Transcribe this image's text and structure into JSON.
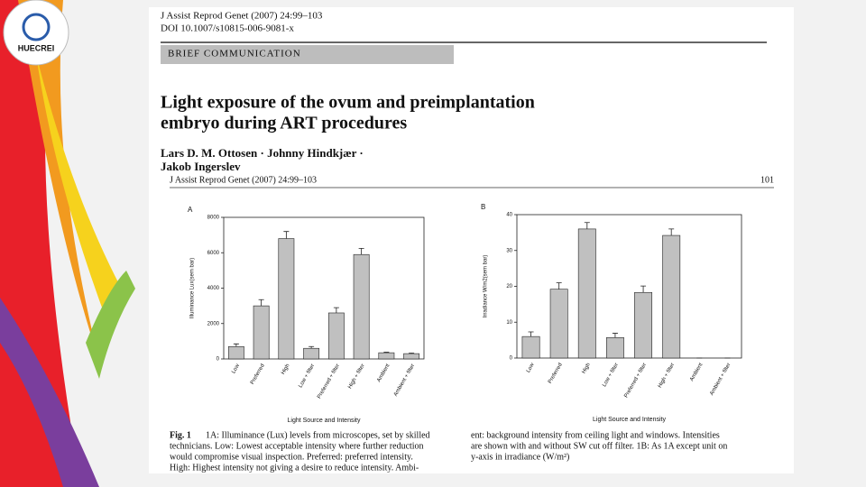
{
  "logo": "HUECREI",
  "paper": {
    "journal": "J Assist Reprod Genet (2007) 24:99–103",
    "doi": "DOI 10.1007/s10815-006-9081-x",
    "section": "BRIEF COMMUNICATION",
    "title_lines": [
      "Light exposure of the ovum and preimplantation",
      "embryo during ART procedures"
    ],
    "author_lines": [
      "Lars D. M. Ottosen · Johnny Hindkjær ·",
      "Jakob Ingerslev"
    ],
    "running_header": "J Assist Reprod Genet (2007) 24:99–103",
    "page_number": "101",
    "caption": {
      "label": "Fig. 1",
      "left_lines": [
        "1A: Illuminance (Lux) levels from microscopes, set by skilled",
        "technicians. Low: Lowest acceptable intensity where further reduction",
        "would compromise visual inspection. Preferred: preferred intensity.",
        "High: Highest intensity not giving a desire to reduce intensity. Ambi-"
      ],
      "right_lines": [
        "ent: background intensity from ceiling light and windows. Intensities",
        "are shown with and without SW cut off filter. 1B: As 1A except unit on",
        "y-axis in irradiance (W/m²)"
      ]
    }
  },
  "chart_data": [
    {
      "type": "bar",
      "panel": "A",
      "y_label": "Illuminance Lux(sem bar)",
      "x_label": "Light Source and Intensity",
      "categories": [
        "Low",
        "Preferred",
        "High",
        "Low + filter",
        "Preferred + filter",
        "High + filter",
        "Ambient",
        "Ambient + filter"
      ],
      "values": [
        700,
        3000,
        6800,
        600,
        2600,
        5900,
        350,
        300
      ],
      "errors": [
        150,
        350,
        400,
        100,
        300,
        350,
        30,
        30
      ],
      "ylim": [
        0,
        8000
      ],
      "yticks": [
        0,
        2000,
        4000,
        6000,
        8000
      ],
      "color": "#c0c0c0"
    },
    {
      "type": "bar",
      "panel": "B",
      "y_label": "Irradiance W/m2(sem bar)",
      "x_label": "Light Source and Intensity",
      "categories": [
        "Low",
        "Preferred",
        "High",
        "Low + filter",
        "Preferred + filter",
        "High + filter",
        "Ambient",
        "Ambient + filter"
      ],
      "values": [
        6,
        19.2,
        36,
        5.7,
        18.3,
        34.2,
        0,
        0
      ],
      "errors": [
        1.3,
        1.8,
        1.8,
        1.2,
        1.8,
        1.8,
        0,
        0
      ],
      "ylim": [
        0,
        40
      ],
      "yticks": [
        0,
        10,
        20,
        30,
        40
      ],
      "color": "#c0c0c0"
    }
  ]
}
